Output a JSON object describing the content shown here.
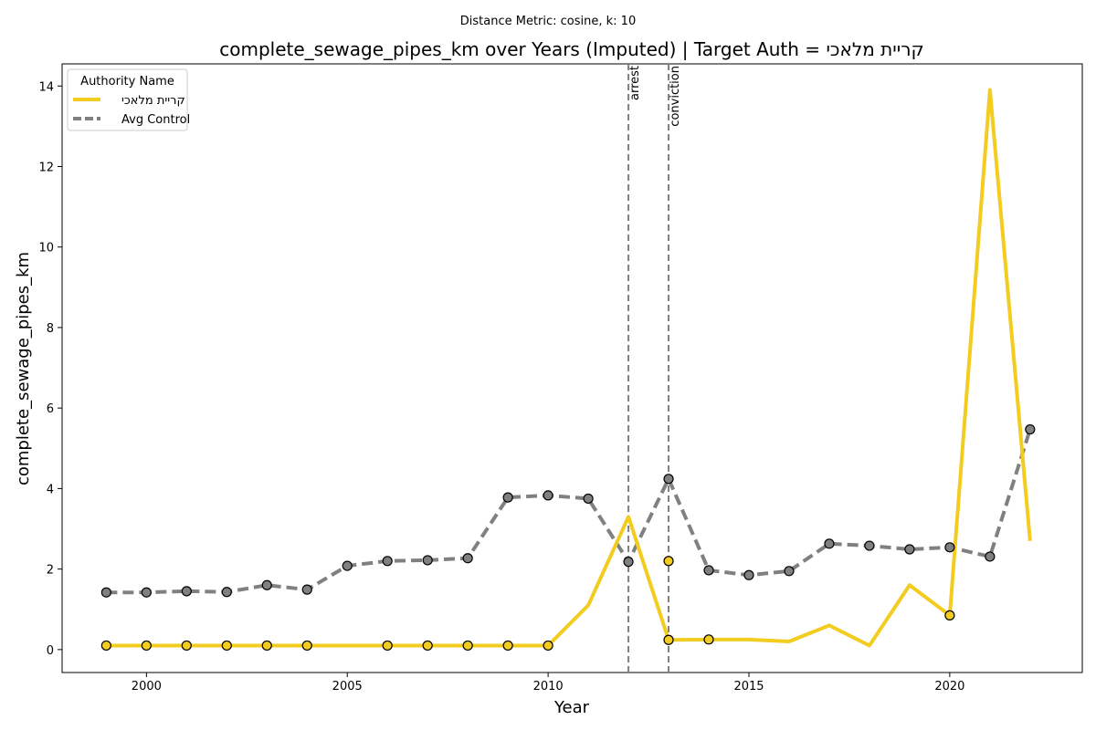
{
  "chart_data": {
    "type": "line",
    "suptitle": "Distance Metric: cosine, k: 10",
    "title": "complete_sewage_pipes_km over Years (Imputed) | Target Auth = קריית מלאכי",
    "xlabel": "Year",
    "ylabel": "complete_sewage_pipes_km",
    "xlim": [
      1997.9,
      2023.3
    ],
    "ylim": [
      -0.57,
      14.55
    ],
    "xticks": [
      2000,
      2005,
      2010,
      2015,
      2020
    ],
    "yticks": [
      0,
      2,
      4,
      6,
      8,
      10,
      12,
      14
    ],
    "legend": {
      "title": "Authority Name",
      "placement": "top-left",
      "entries": [
        "קריית מלאכי",
        "Avg Control"
      ]
    },
    "series": [
      {
        "name": "קריית מלאכי",
        "color": "#f2cc1e",
        "style": "solid",
        "x": [
          1999,
          2000,
          2001,
          2002,
          2003,
          2004,
          2005,
          2006,
          2007,
          2008,
          2009,
          2010,
          2011,
          2012,
          2013,
          2014,
          2015,
          2016,
          2017,
          2018,
          2019,
          2020,
          2021,
          2022
        ],
        "values": [
          0.1,
          0.1,
          0.1,
          0.1,
          0.1,
          0.1,
          0.1,
          0.1,
          0.1,
          0.1,
          0.1,
          0.1,
          1.1,
          3.3,
          0.24,
          0.25,
          0.25,
          0.2,
          0.6,
          0.1,
          1.6,
          0.85,
          13.9,
          2.7
        ],
        "markers_x": [
          1999,
          2000,
          2001,
          2002,
          2003,
          2004,
          2006,
          2007,
          2008,
          2009,
          2010,
          2013,
          2013,
          2014,
          2020
        ],
        "markers_y": [
          0.1,
          0.1,
          0.1,
          0.1,
          0.1,
          0.1,
          0.1,
          0.1,
          0.1,
          0.1,
          0.1,
          2.2,
          0.24,
          0.25,
          0.85
        ]
      },
      {
        "name": "Avg Control",
        "color": "#808080",
        "style": "dashed",
        "x": [
          1999,
          2000,
          2001,
          2002,
          2003,
          2004,
          2005,
          2006,
          2007,
          2008,
          2009,
          2010,
          2011,
          2012,
          2013,
          2014,
          2015,
          2016,
          2017,
          2018,
          2019,
          2020,
          2021,
          2022
        ],
        "values": [
          1.42,
          1.42,
          1.45,
          1.43,
          1.6,
          1.49,
          2.08,
          2.2,
          2.22,
          2.27,
          3.78,
          3.83,
          3.75,
          2.18,
          4.24,
          1.97,
          1.85,
          1.95,
          2.63,
          2.58,
          2.49,
          2.54,
          2.31,
          5.47
        ],
        "markers_x": [
          1999,
          2000,
          2001,
          2002,
          2003,
          2004,
          2005,
          2006,
          2007,
          2008,
          2009,
          2010,
          2011,
          2012,
          2013,
          2014,
          2015,
          2016,
          2017,
          2018,
          2019,
          2020,
          2021,
          2022
        ],
        "markers_y": [
          1.42,
          1.42,
          1.45,
          1.43,
          1.6,
          1.49,
          2.08,
          2.2,
          2.22,
          2.27,
          3.78,
          3.83,
          3.75,
          2.18,
          4.24,
          1.97,
          1.85,
          1.95,
          2.63,
          2.58,
          2.49,
          2.54,
          2.31,
          5.47
        ]
      }
    ],
    "vlines": [
      {
        "x": 2012,
        "label": "arrest"
      },
      {
        "x": 2013,
        "label": "conviction"
      }
    ],
    "grid": false
  }
}
